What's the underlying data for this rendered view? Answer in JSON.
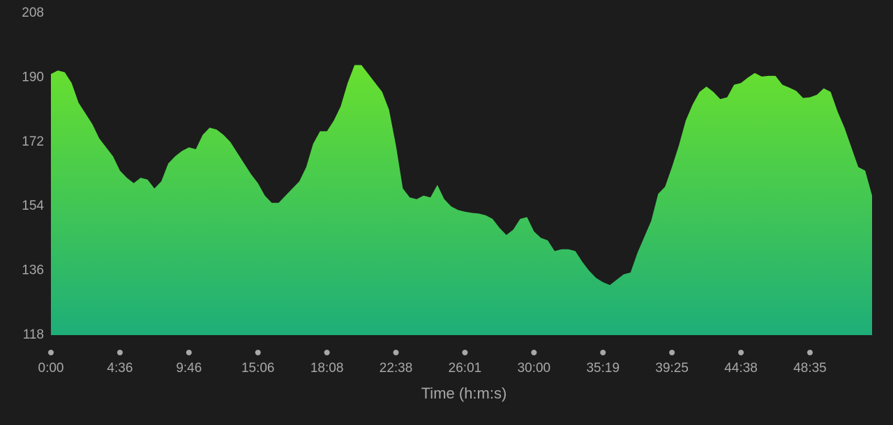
{
  "chart_data": {
    "type": "area",
    "xlabel": "Time (h:m:s)",
    "values": [
      191,
      192,
      191.5,
      188.5,
      183,
      180,
      177,
      173,
      170.5,
      168,
      164,
      162,
      160.5,
      162,
      161.5,
      159,
      161,
      166,
      168,
      169.5,
      170.5,
      170,
      174,
      176,
      175.5,
      174,
      172,
      169,
      166,
      163,
      160.5,
      157,
      155,
      155,
      157,
      159,
      161,
      165,
      171.5,
      175,
      175,
      178,
      182,
      188.5,
      193.5,
      193.5,
      191,
      188.5,
      186,
      181,
      171,
      159,
      156.5,
      156,
      157,
      156.5,
      160,
      156,
      154,
      153,
      152.5,
      152.2,
      152,
      151.5,
      150.5,
      148,
      146,
      147.5,
      150.5,
      151,
      147,
      145.2,
      144.5,
      141.5,
      142,
      142,
      141.5,
      138.5,
      136,
      134,
      132.8,
      132,
      133.5,
      135,
      135.5,
      141,
      145.5,
      150,
      157.5,
      159.5,
      165,
      171,
      178,
      182.5,
      186,
      187.5,
      186,
      184,
      184.5,
      188,
      188.5,
      190,
      191.3,
      190.3,
      190.5,
      190.5,
      188,
      187.2,
      186.3,
      184.3,
      184.5,
      185.2,
      187,
      186,
      180.5,
      176,
      170.5,
      165,
      164,
      157
    ],
    "colors": [
      "#68e02e",
      "#1eae78"
    ],
    "xlim": [
      0,
      119
    ],
    "xticks": [
      {
        "value": 0,
        "label": "0:00"
      },
      {
        "value": 10,
        "label": "4:36"
      },
      {
        "value": 20,
        "label": "9:46"
      },
      {
        "value": 30,
        "label": "15:06"
      },
      {
        "value": 40,
        "label": "18:08"
      },
      {
        "value": 50,
        "label": "22:38"
      },
      {
        "value": 60,
        "label": "26:01"
      },
      {
        "value": 70,
        "label": "30:00"
      },
      {
        "value": 80,
        "label": "35:19"
      },
      {
        "value": 90,
        "label": "39:25"
      },
      {
        "value": 100,
        "label": "44:38"
      },
      {
        "value": 110,
        "label": "48:35"
      }
    ],
    "ylim": [
      118,
      208
    ],
    "yticks": [
      118,
      136,
      154,
      172,
      190,
      208
    ]
  }
}
